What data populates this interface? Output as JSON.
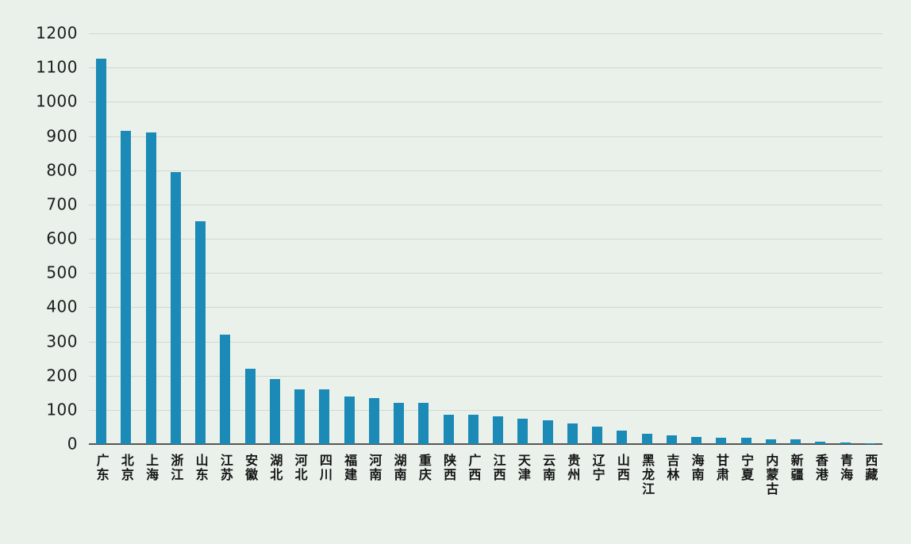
{
  "chart_data": {
    "type": "bar",
    "title": "",
    "xlabel": "",
    "ylabel": "",
    "categories": [
      "广东",
      "北京",
      "上海",
      "浙江",
      "山东",
      "江苏",
      "安徽",
      "湖北",
      "河北",
      "四川",
      "福建",
      "河南",
      "湖南",
      "重庆",
      "陕西",
      "广西",
      "江西",
      "天津",
      "云南",
      "贵州",
      "辽宁",
      "山西",
      "黑龙江",
      "吉林",
      "海南",
      "甘肃",
      "宁夏",
      "内蒙古",
      "新疆",
      "香港",
      "青海",
      "西藏"
    ],
    "values": [
      1125,
      915,
      910,
      795,
      650,
      320,
      220,
      190,
      160,
      160,
      140,
      135,
      120,
      120,
      85,
      85,
      80,
      75,
      70,
      60,
      52,
      40,
      30,
      25,
      20,
      18,
      18,
      13,
      14,
      6,
      4,
      2
    ],
    "ylim": [
      0,
      1200
    ],
    "ytick_interval": 100,
    "ytick_labels": [
      "0",
      "100",
      "200",
      "300",
      "400",
      "500",
      "600",
      "700",
      "800",
      "900",
      "1000",
      "1100",
      "1200"
    ],
    "grid": true,
    "legend": false,
    "legend_position": "none",
    "bar_color": "#1b8ab6",
    "background_color": "#e9f1ea",
    "axis_color": "#565656",
    "grid_color": "#d3d8d2",
    "tick_label_color": "#1c1c1c",
    "category_label_color": "#141414"
  }
}
